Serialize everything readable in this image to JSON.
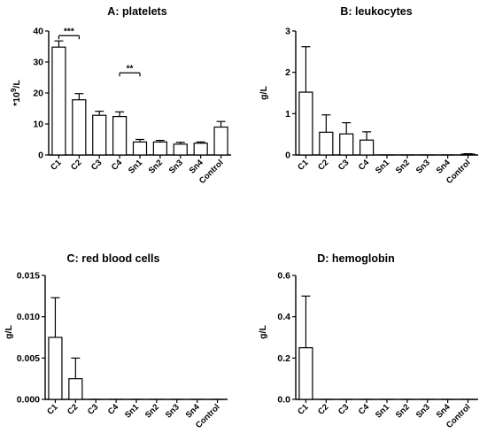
{
  "chart_data": [
    {
      "type": "bar",
      "title": "A: platelets",
      "ylabel": "*10^9/L",
      "ylabel_base": "*10",
      "ylabel_exp": "9",
      "ylabel_unit": "/L",
      "ylim": [
        0,
        40
      ],
      "yticks": [
        0,
        10,
        20,
        30,
        40
      ],
      "tick_labels": [
        "0",
        "10",
        "20",
        "30",
        "40"
      ],
      "categories": [
        "C1",
        "C2",
        "C3",
        "C4",
        "Sn1",
        "Sn2",
        "Sn3",
        "Sn4",
        "Control"
      ],
      "values": [
        34.8,
        17.8,
        12.8,
        12.4,
        4.2,
        4.2,
        3.5,
        3.8,
        9.0
      ],
      "errors": [
        2.0,
        2.0,
        1.3,
        1.5,
        0.8,
        0.5,
        0.6,
        0.4,
        1.8
      ],
      "annotations": [
        {
          "text": "***",
          "from": 0,
          "to": 1,
          "y": 38.5
        },
        {
          "text": "**",
          "from": 3,
          "to": 4,
          "y": 26.5
        }
      ]
    },
    {
      "type": "bar",
      "title": "B: leukocytes",
      "ylabel": "g/L",
      "ylim": [
        0,
        3
      ],
      "yticks": [
        0,
        1,
        2,
        3
      ],
      "tick_labels": [
        "0",
        "1",
        "2",
        "3"
      ],
      "categories": [
        "C1",
        "C2",
        "C3",
        "C4",
        "Sn1",
        "Sn2",
        "Sn3",
        "Sn4",
        "Control"
      ],
      "values": [
        1.52,
        0.55,
        0.51,
        0.36,
        0,
        0,
        0,
        0,
        0.02
      ],
      "errors": [
        1.1,
        0.42,
        0.27,
        0.2,
        0,
        0,
        0,
        0,
        0.01
      ],
      "annotations": []
    },
    {
      "type": "bar",
      "title": "C: red blood cells",
      "ylabel": "g/L",
      "ylim": [
        0,
        0.015
      ],
      "yticks": [
        0,
        0.005,
        0.01,
        0.015
      ],
      "tick_labels": [
        "0.000",
        "0.005",
        "0.010",
        "0.015"
      ],
      "categories": [
        "C1",
        "C2",
        "C3",
        "C4",
        "Sn1",
        "Sn2",
        "Sn3",
        "Sn4",
        "Control"
      ],
      "values": [
        0.0075,
        0.0025,
        0,
        0,
        0,
        0,
        0,
        0,
        0
      ],
      "errors": [
        0.0048,
        0.0025,
        0,
        0,
        0,
        0,
        0,
        0,
        0
      ],
      "annotations": []
    },
    {
      "type": "bar",
      "title": "D: hemoglobin",
      "ylabel": "g/L",
      "ylim": [
        0,
        0.6
      ],
      "yticks": [
        0,
        0.2,
        0.4,
        0.6
      ],
      "tick_labels": [
        "0.0",
        "0.2",
        "0.4",
        "0.6"
      ],
      "categories": [
        "C1",
        "C2",
        "C3",
        "C4",
        "Sn1",
        "Sn2",
        "Sn3",
        "Sn4",
        "Control"
      ],
      "values": [
        0.25,
        0,
        0,
        0,
        0,
        0,
        0,
        0,
        0
      ],
      "errors": [
        0.25,
        0,
        0,
        0,
        0,
        0,
        0,
        0,
        0
      ],
      "annotations": []
    }
  ]
}
